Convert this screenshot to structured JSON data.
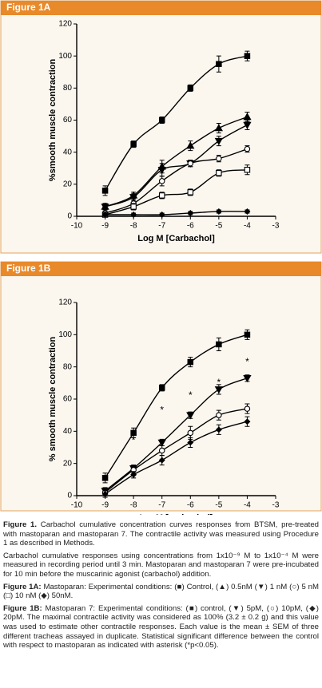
{
  "chart_data": [
    {
      "type": "line",
      "title": "Figure 1A",
      "xlabel": "Log M [Carbachol]",
      "ylabel": "%smooth muscle contraction",
      "x": [
        -9,
        -8,
        -7,
        -6,
        -5,
        -4
      ],
      "xlim": [
        -10,
        -3
      ],
      "xticks": [
        -10,
        -9,
        -8,
        -7,
        -6,
        -5,
        -4,
        -3
      ],
      "ylim": [
        0,
        120
      ],
      "yticks": [
        0,
        20,
        40,
        60,
        80,
        100,
        120
      ],
      "series": [
        {
          "marker": "square-filled",
          "color": "#000000",
          "values": [
            16,
            45,
            60,
            80,
            95,
            100
          ],
          "errors": [
            3,
            2,
            2,
            2,
            5,
            3
          ]
        },
        {
          "marker": "triangle-up",
          "color": "#000000",
          "values": [
            6,
            13,
            31,
            44,
            55,
            62
          ],
          "errors": [
            2,
            2,
            4,
            3,
            3,
            3
          ]
        },
        {
          "marker": "triangle-down",
          "color": "#000000",
          "values": [
            6,
            12,
            29,
            33,
            47,
            57
          ],
          "errors": [
            2,
            2,
            4,
            2,
            3,
            3
          ]
        },
        {
          "marker": "circle-open",
          "color": "#000000",
          "values": [
            2,
            8,
            22,
            33,
            36,
            42
          ],
          "errors": [
            1,
            2,
            3,
            2,
            2,
            2
          ]
        },
        {
          "marker": "square-open",
          "color": "#000000",
          "values": [
            1,
            6,
            13,
            15,
            27,
            29
          ],
          "errors": [
            1,
            2,
            2,
            2,
            2,
            3
          ]
        },
        {
          "marker": "diamond-filled",
          "color": "#000000",
          "values": [
            1,
            1,
            1,
            2,
            3,
            3
          ],
          "errors": [
            1,
            1,
            1,
            1,
            1,
            1
          ]
        }
      ]
    },
    {
      "type": "line",
      "title": "Figure 1B",
      "xlabel": "LogM [carbachol]",
      "ylabel": "% smooth muscle contraction",
      "x": [
        -9,
        -8,
        -7,
        -6,
        -5,
        -4
      ],
      "xlim": [
        -10,
        -3
      ],
      "xticks": [
        -10,
        -9,
        -8,
        -7,
        -6,
        -5,
        -4,
        -3
      ],
      "ylim": [
        0,
        120
      ],
      "yticks": [
        0,
        20,
        40,
        60,
        80,
        100,
        120
      ],
      "series": [
        {
          "marker": "square-filled",
          "color": "#000000",
          "values": [
            11,
            39,
            67,
            83,
            94,
            100
          ],
          "errors": [
            3,
            3,
            2,
            3,
            4,
            3
          ]
        },
        {
          "marker": "triangle-down",
          "color": "#000000",
          "values": [
            3,
            17,
            33,
            50,
            66,
            73
          ],
          "errors": [
            2,
            2,
            2,
            2,
            3,
            2
          ]
        },
        {
          "marker": "circle-open",
          "color": "#000000",
          "values": [
            2,
            16,
            28,
            39,
            50,
            54
          ],
          "errors": [
            2,
            2,
            3,
            4,
            3,
            3
          ]
        },
        {
          "marker": "diamond-filled",
          "color": "#000000",
          "values": [
            1,
            13,
            22,
            33,
            41,
            46
          ],
          "errors": [
            2,
            2,
            3,
            3,
            3,
            3
          ]
        }
      ],
      "annotations": [
        {
          "text": "*",
          "x": -8,
          "y": 34
        },
        {
          "text": "*",
          "x": -7,
          "y": 53
        },
        {
          "text": "*",
          "x": -6,
          "y": 62
        },
        {
          "text": "*",
          "x": -5,
          "y": 70
        },
        {
          "text": "*",
          "x": -4,
          "y": 83
        }
      ]
    }
  ],
  "captions": [
    {
      "label": "Figure 1.",
      "text": " Carbachol cumulative concentration curves responses from BTSM, pre-treated with mastoparan and mastoparan 7. The contractile activity was measured using Procedure 1 as described in Methods."
    },
    {
      "text": "Carbachol cumulative responses using concentrations from 1x10⁻⁹ M to 1x10⁻⁴ M were measured in recording period until 3 min. Mastoparan and mastoparan 7 were pre-incubated for 10 min before the muscarinic agonist (carbachol) addition."
    },
    {
      "label": "Figure 1A:",
      "text": " Mastoparan: Experimental conditions: (■) Control, (▲) 0.5nM (▼) 1 nM (○) 5 nM (□) 10 nM (◆) 50nM."
    },
    {
      "label": "Figure 1B:",
      "text": " Mastoparan 7: Experimental conditions: (■) control, (▼) 5pM, (○) 10pM, (◆) 20pM. The maximal contractile activity was considered as 100% (3.2 ± 0.2 g) and this value was used to estimate other contractile responses. Each value is the mean ± SEM of three different tracheas assayed in duplicate. Statistical significant difference between the control with respect to mastoparan as indicated with asterisk (*p<0.05)."
    }
  ]
}
